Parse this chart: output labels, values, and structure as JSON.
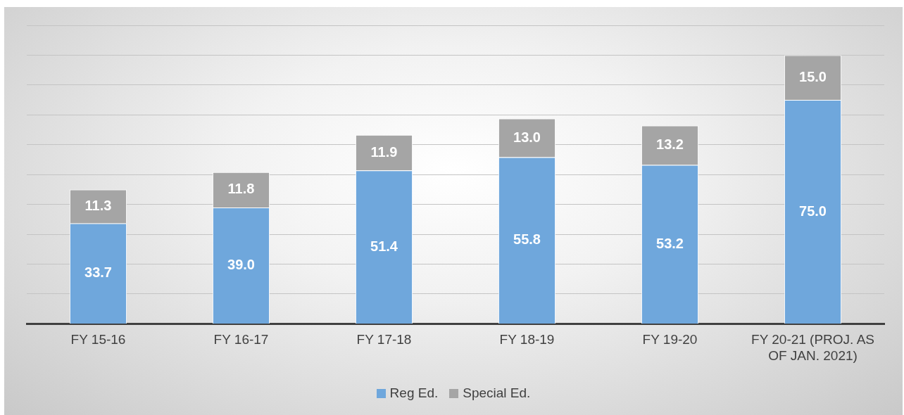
{
  "chart_data": {
    "type": "bar",
    "stacked": true,
    "categories": [
      "FY 15-16",
      "FY 16-17",
      "FY 17-18",
      "FY 18-19",
      "FY 19-20",
      "FY 20-21 (PROJ. AS OF JAN. 2021)"
    ],
    "series": [
      {
        "name": "Reg Ed.",
        "color": "#6fa7dc",
        "values": [
          33.7,
          39.0,
          51.4,
          55.8,
          53.2,
          75.0
        ],
        "value_labels": [
          "33.7",
          "39.0",
          "51.4",
          "55.8",
          "53.2",
          "75.0"
        ]
      },
      {
        "name": "Special Ed.",
        "color": "#a5a5a5",
        "values": [
          11.3,
          11.8,
          11.9,
          13.0,
          13.2,
          15.0
        ],
        "value_labels": [
          "11.3",
          "11.8",
          "11.9",
          "13.0",
          "13.2",
          "15.0"
        ]
      }
    ],
    "ylim": [
      0,
      100
    ],
    "yticks": [
      0,
      {
        "value": 10,
        "label": null
      },
      {
        "value": 20,
        "label": null
      },
      {
        "value": 30,
        "label": null
      },
      {
        "value": 40,
        "label": null
      },
      {
        "value": 50,
        "label": null
      },
      {
        "value": 60,
        "label": null
      },
      {
        "value": 70,
        "label": null
      },
      {
        "value": 80,
        "label": null
      },
      {
        "value": 90,
        "label": null
      },
      {
        "value": 100,
        "label": null
      }
    ],
    "tick_labels": "x",
    "grid": "y",
    "legend": "bottom"
  }
}
